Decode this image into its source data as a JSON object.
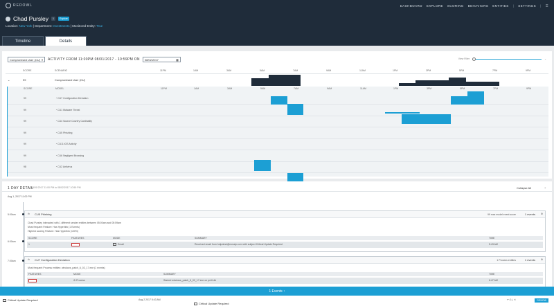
{
  "app": {
    "name": "REDOWL"
  },
  "nav": [
    "DASHBOARD",
    "EXPLORE",
    "SCORING",
    "BEHAVIORS",
    "ENTITIES",
    "SETTINGS"
  ],
  "user": {
    "name": "Chad Pursley",
    "badges": [
      "1",
      "Explore"
    ],
    "location_label": "Location:",
    "location": "New York",
    "department_label": "Department:",
    "department": "Investments",
    "monitored_label": "Monitored Entity:",
    "monitored": "True"
  },
  "tabs": [
    "Timeline",
    "Details"
  ],
  "activity": {
    "scenario_select": "Compromised User (CU)",
    "title": "ACTIVITY FROM 11:00PM 08/01/2017 - 10:59PM ON",
    "date": "08/02/2017",
    "view_filter": "View Filter"
  },
  "headers": {
    "score": "SCORE",
    "scenario": "SCENARIO",
    "model": "MODEL"
  },
  "time_ticks": [
    "11PM",
    "1AM",
    "3AM",
    "5AM",
    "7AM",
    "9AM",
    "11AM",
    "1PM",
    "3PM",
    "5PM",
    "7PM",
    "9PM"
  ],
  "scenario_row": {
    "score": "99",
    "name": "Compromised User (CU)"
  },
  "models": [
    {
      "score": "99",
      "name": "CU7 Configuration Deviation"
    },
    {
      "score": "99",
      "name": "CU1 Malware Threat"
    },
    {
      "score": "99",
      "name": "CU4 Source Country Cardinality"
    },
    {
      "score": "99",
      "name": "CU5 Phishing"
    },
    {
      "score": "99",
      "name": "CU11 iOS Activity"
    },
    {
      "score": "99",
      "name": "CU6 Negligent Browsing"
    },
    {
      "score": "98",
      "name": "CU2 Antivirus"
    }
  ],
  "day_detail": {
    "title": "1 DAY DETAIL",
    "range": "08/01/2017 11:00 PM to 08/02/2017 10:59 PM",
    "collapse": "Collapse All",
    "date_marker": "Aug 1, 2017 11:00 PM",
    "time1": "5:00am",
    "time2": "6:00am",
    "time3": "7:00am"
  },
  "card1": {
    "title": "CU5 Phishing",
    "score_info": "99 max model event score",
    "events": "1 events",
    "line1": "Chad Pursley interacted with 1 different sender entities between 05:00am and 05:59am",
    "line2": "Most frequent Feature: Has Hyperlink (1 Events)",
    "line3": "Highest scoring Feature: Has Hyperlink (100%)",
    "cols": [
      "SCORE",
      "FEATURES",
      "MODE",
      "SUMMARY",
      "TIME"
    ],
    "row": {
      "score": "1",
      "mode": "Email",
      "summary": "Received email from helpdesk@mmaip.com with subject Critical Update Required",
      "time": "5:43 AM"
    }
  },
  "card2": {
    "title": "CU7 Configuration Deviation",
    "entities": "1 Process entities",
    "events": "1 events",
    "line1": "Most frequent Process entities: windows_patch_6_02_17.exe (1 events)",
    "cols": [
      "FEATURES",
      "MODE",
      "SUMMARY",
      "TIME"
    ],
    "row": {
      "mode": "Process",
      "summary": "Started windows_patch_6_02_17.exe on pd-fi-db",
      "time": "6:47 AM"
    }
  },
  "bottom": {
    "events_bar": "1 Events ↑",
    "left_title": "Critical Update Required",
    "left_date": "Aug 2 2017 5:43 AM",
    "right_title": "Critical Update Required",
    "review": "REVIEW"
  }
}
